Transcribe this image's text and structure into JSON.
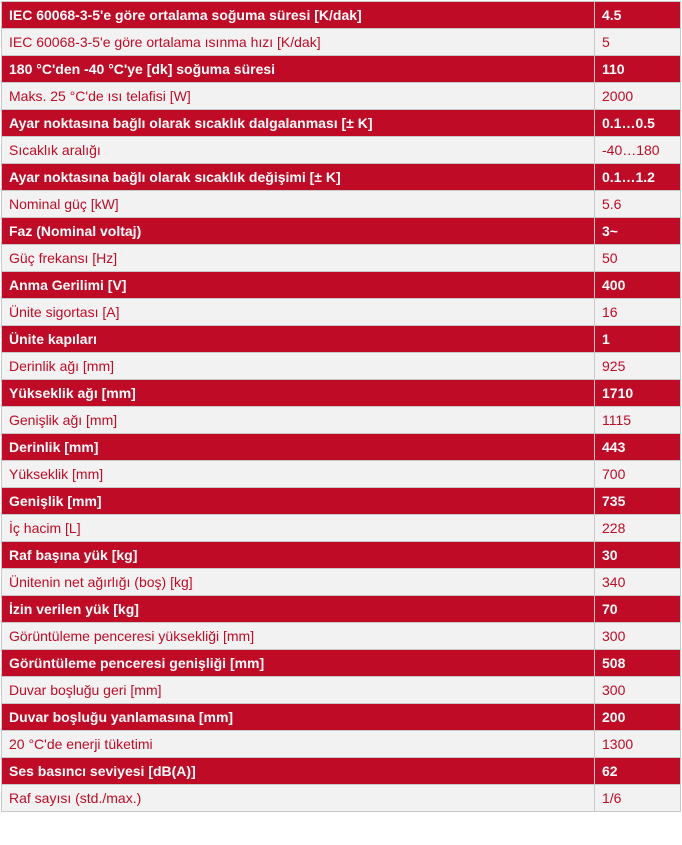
{
  "rows": [
    {
      "label": "IEC 60068-3-5'e göre ortalama soğuma süresi [K/dak]",
      "value": "4.5"
    },
    {
      "label": "IEC 60068-3-5'e göre ortalama ısınma hızı [K/dak]",
      "value": "5"
    },
    {
      "label": "180 °C'den -40 °C'ye [dk] soğuma süresi",
      "value": "110"
    },
    {
      "label": "Maks. 25 °C'de ısı telafisi [W]",
      "value": "2000"
    },
    {
      "label": "Ayar noktasına bağlı olarak sıcaklık dalgalanması [± K]",
      "value": "0.1…0.5"
    },
    {
      "label": "Sıcaklık aralığı",
      "value": "-40…180"
    },
    {
      "label": "Ayar noktasına bağlı olarak sıcaklık değişimi [± K]",
      "value": "0.1…1.2"
    },
    {
      "label": "Nominal güç [kW]",
      "value": "5.6"
    },
    {
      "label": "Faz (Nominal voltaj)",
      "value": "3~"
    },
    {
      "label": "Güç frekansı [Hz]",
      "value": "50"
    },
    {
      "label": "Anma Gerilimi [V]",
      "value": "400"
    },
    {
      "label": "Ünite sigortası [A]",
      "value": "16"
    },
    {
      "label": "Ünite kapıları",
      "value": "1"
    },
    {
      "label": "Derinlik ağı [mm]",
      "value": "925"
    },
    {
      "label": "Yükseklik ağı [mm]",
      "value": "1710"
    },
    {
      "label": "Genişlik ağı [mm]",
      "value": "1115"
    },
    {
      "label": "Derinlik [mm]",
      "value": "443"
    },
    {
      "label": "Yükseklik [mm]",
      "value": "700"
    },
    {
      "label": "Genişlik [mm]",
      "value": "735"
    },
    {
      "label": "İç hacim [L]",
      "value": "228"
    },
    {
      "label": "Raf başına yük [kg]",
      "value": "30"
    },
    {
      "label": "Ünitenin net ağırlığı (boş) [kg]",
      "value": "340"
    },
    {
      "label": "İzin verilen yük [kg]",
      "value": "70"
    },
    {
      "label": "Görüntüleme penceresi yüksekliği [mm]",
      "value": "300"
    },
    {
      "label": "Görüntüleme penceresi genişliği [mm]",
      "value": "508"
    },
    {
      "label": "Duvar boşluğu geri [mm]",
      "value": "300"
    },
    {
      "label": "Duvar boşluğu yanlamasına [mm]",
      "value": "200"
    },
    {
      "label": "20 °C'de enerji tüketimi",
      "value": "1300"
    },
    {
      "label": "Ses basıncı seviyesi [dB(A)]",
      "value": "62"
    },
    {
      "label": "Raf sayısı (std./max.)",
      "value": "1/6"
    }
  ],
  "colors": {
    "accent": "#c00b26",
    "light_row_bg": "#f2f2f2",
    "border": "#c9c9c9"
  }
}
